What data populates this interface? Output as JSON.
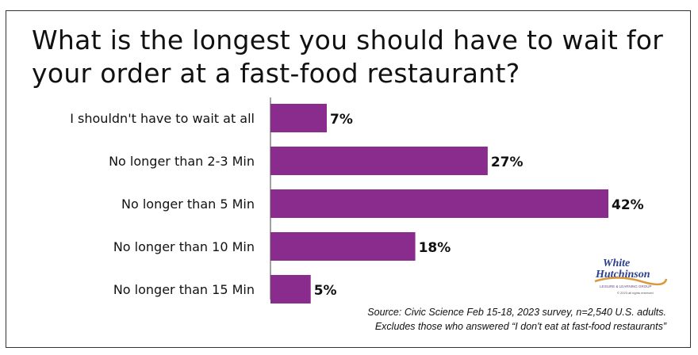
{
  "title_line1": "What is the longest you should have to wait for",
  "title_line2": "your order at a fast-food restaurant?",
  "source_line1": "Source: Civic Science  Feb 15-18, 2023 survey, n=2,540 U.S. adults.",
  "source_line2": "Excludes those who answered “I don't eat at fast-food restaurants”",
  "logo": {
    "line1": "White",
    "line2": "Hutchinson",
    "tagline": "LEISURE & LEARNING GROUP",
    "copyright": "© 2023 all rights reserved"
  },
  "colors": {
    "bar": "#8a2b8e",
    "text": "#111111",
    "axis": "#444444"
  },
  "chart_data": {
    "type": "bar",
    "orientation": "horizontal",
    "categories": [
      "I shouldn't have to wait at all",
      "No longer than 2-3 Min",
      "No longer than 5 Min",
      "No longer than 10 Min",
      "No longer than 15 Min"
    ],
    "values": [
      7,
      27,
      42,
      18,
      5
    ],
    "value_labels": [
      "7%",
      "27%",
      "42%",
      "18%",
      "5%"
    ],
    "unit": "%",
    "xlim": [
      0,
      42
    ]
  }
}
